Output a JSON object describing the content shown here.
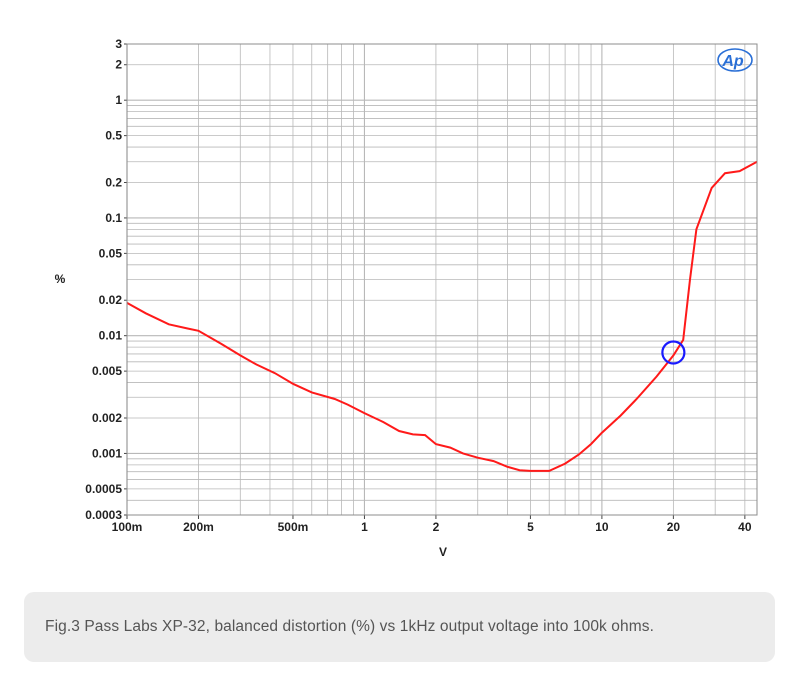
{
  "caption": "Fig.3 Pass Labs XP-32, balanced distortion (%) vs 1kHz output voltage into 100k ohms.",
  "logo_text": "Ap",
  "colors": {
    "curve": "#ff1a1a",
    "marker": "#1a1aff",
    "logo": "#2a6fd6",
    "grid": "#b8b8b8",
    "frame": "#8c8c8c"
  },
  "chart_data": {
    "type": "line",
    "xscale": "log",
    "yscale": "log",
    "xlim": [
      0.1,
      45
    ],
    "ylim": [
      0.0003,
      3
    ],
    "xlabel": "V",
    "ylabel": "%",
    "grid": true,
    "x_ticks": [
      {
        "v": 0.1,
        "label": "100m"
      },
      {
        "v": 0.2,
        "label": "200m"
      },
      {
        "v": 0.5,
        "label": "500m"
      },
      {
        "v": 1,
        "label": "1"
      },
      {
        "v": 2,
        "label": "2"
      },
      {
        "v": 5,
        "label": "5"
      },
      {
        "v": 10,
        "label": "10"
      },
      {
        "v": 20,
        "label": "20"
      },
      {
        "v": 40,
        "label": "40"
      }
    ],
    "y_ticks": [
      {
        "v": 3,
        "label": "3"
      },
      {
        "v": 2,
        "label": "2"
      },
      {
        "v": 1,
        "label": "1"
      },
      {
        "v": 0.5,
        "label": "0.5"
      },
      {
        "v": 0.2,
        "label": "0.2"
      },
      {
        "v": 0.1,
        "label": "0.1"
      },
      {
        "v": 0.05,
        "label": "0.05"
      },
      {
        "v": 0.02,
        "label": "0.02"
      },
      {
        "v": 0.01,
        "label": "0.01"
      },
      {
        "v": 0.005,
        "label": "0.005"
      },
      {
        "v": 0.002,
        "label": "0.002"
      },
      {
        "v": 0.001,
        "label": "0.001"
      },
      {
        "v": 0.0005,
        "label": "0.0005"
      },
      {
        "v": 0.0003,
        "label": "0.0003"
      }
    ],
    "series": [
      {
        "points": [
          [
            0.1,
            0.019
          ],
          [
            0.12,
            0.0155
          ],
          [
            0.15,
            0.0125
          ],
          [
            0.18,
            0.0115
          ],
          [
            0.2,
            0.011
          ],
          [
            0.25,
            0.0085
          ],
          [
            0.3,
            0.0068
          ],
          [
            0.35,
            0.0057
          ],
          [
            0.42,
            0.0048
          ],
          [
            0.5,
            0.0039
          ],
          [
            0.6,
            0.0033
          ],
          [
            0.75,
            0.0029
          ],
          [
            0.85,
            0.0026
          ],
          [
            1.0,
            0.0022
          ],
          [
            1.2,
            0.00185
          ],
          [
            1.4,
            0.00155
          ],
          [
            1.6,
            0.00145
          ],
          [
            1.8,
            0.00143
          ],
          [
            2.0,
            0.0012
          ],
          [
            2.3,
            0.00112
          ],
          [
            2.6,
            0.001
          ],
          [
            3.0,
            0.00092
          ],
          [
            3.5,
            0.00086
          ],
          [
            4.0,
            0.00077
          ],
          [
            4.5,
            0.00072
          ],
          [
            5.0,
            0.00071
          ],
          [
            6.0,
            0.00071
          ],
          [
            7.0,
            0.00082
          ],
          [
            8.0,
            0.00098
          ],
          [
            9.0,
            0.0012
          ],
          [
            10.0,
            0.0015
          ],
          [
            12.0,
            0.0021
          ],
          [
            14.0,
            0.0029
          ],
          [
            17.0,
            0.0045
          ],
          [
            20.0,
            0.0068
          ],
          [
            22.0,
            0.0092
          ],
          [
            23.5,
            0.03
          ],
          [
            25.0,
            0.08
          ],
          [
            29.0,
            0.18
          ],
          [
            33.0,
            0.24
          ],
          [
            38.0,
            0.25
          ],
          [
            45.0,
            0.3
          ]
        ]
      }
    ],
    "markers": [
      {
        "x": 20,
        "y": 0.0072,
        "shape": "circle"
      }
    ]
  }
}
